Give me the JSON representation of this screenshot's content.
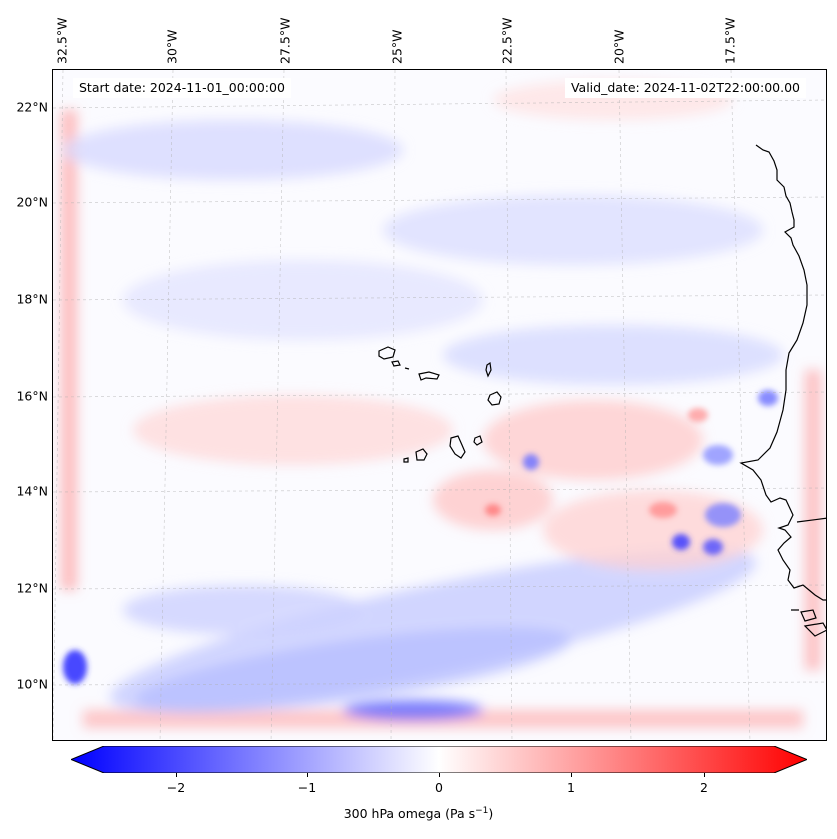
{
  "info": {
    "start_date": "Start date: 2024-11-01_00:00:00",
    "valid_date": "Valid_date: 2024-11-02T22:00:00.00"
  },
  "map": {
    "longitude_labels": [
      "32.5°W",
      "30°W",
      "27.5°W",
      "25°W",
      "22.5°W",
      "20°W",
      "17.5°W"
    ],
    "latitude_labels": [
      "22°N",
      "20°N",
      "18°N",
      "16°N",
      "14°N",
      "12°N",
      "10°N"
    ],
    "field": "300 hPa omega",
    "gridlines": true
  },
  "colorbar": {
    "label_main": "300 hPa omega (Pa s",
    "label_exp": "−1",
    "label_close": ")",
    "ticks": [
      "−2",
      "−1",
      "0",
      "1",
      "2"
    ],
    "range": [
      -2.75,
      2.75
    ],
    "colormap": "bwr",
    "extend": "both",
    "colors": {
      "negative": "#0000ff",
      "neutral": "#ffffff",
      "positive": "#ff0000"
    }
  }
}
